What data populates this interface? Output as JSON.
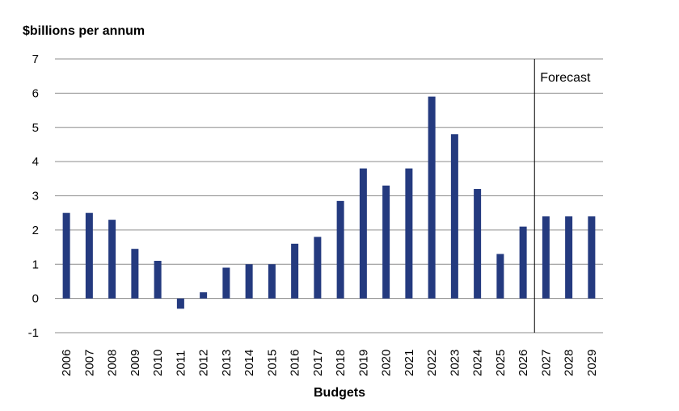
{
  "chart_data": {
    "type": "bar",
    "ylabel": "$billions per annum",
    "xlabel": "Budgets",
    "categories": [
      "2006",
      "2007",
      "2008",
      "2009",
      "2010",
      "2011",
      "2012",
      "2013",
      "2014",
      "2015",
      "2016",
      "2017",
      "2018",
      "2019",
      "2020",
      "2021",
      "2022",
      "2023",
      "2024",
      "2025",
      "2026",
      "2027",
      "2028",
      "2029"
    ],
    "values": [
      2.5,
      2.5,
      2.3,
      1.45,
      1.1,
      -0.3,
      0.18,
      0.9,
      1.0,
      1.0,
      1.6,
      1.8,
      2.85,
      3.8,
      3.3,
      3.8,
      5.9,
      4.8,
      3.2,
      1.3,
      2.1,
      2.4,
      2.4,
      2.4
    ],
    "ylim": [
      -1,
      7
    ],
    "yticks": [
      -1,
      0,
      1,
      2,
      3,
      4,
      5,
      6,
      7
    ],
    "grid": true,
    "bar_color": "#243a7f",
    "annotation": {
      "label": "Forecast",
      "after_category": "2026"
    }
  }
}
